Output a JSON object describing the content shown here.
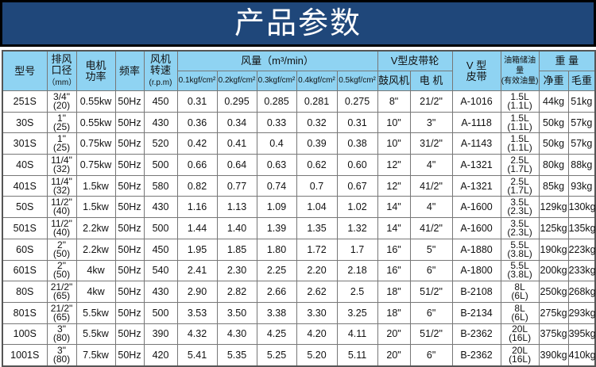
{
  "title": "产品参数",
  "headers": {
    "model": "型号",
    "outlet": [
      "排风",
      "口径",
      "（mm）"
    ],
    "power": [
      "电机",
      "功率"
    ],
    "freq": "频率",
    "speed": [
      "风机",
      "转速",
      "(r.p.m)"
    ],
    "airflow": "风量（m³/min）",
    "pressures": [
      "0.1kgf/cm²",
      "0.2kgf/cm²",
      "0.3kgf/cm²",
      "0.4kgf/cm²",
      "0.5kgf/cm²"
    ],
    "pulley": "V型皮带轮",
    "blower": "鼓风机",
    "motor": "电 机",
    "belt": [
      "V 型",
      "皮带"
    ],
    "oil": [
      "油箱储油量",
      "(有效油量)"
    ],
    "weight": "重 量",
    "net": "净重",
    "gross": "毛重"
  },
  "rows": [
    [
      "251S",
      "3/4\"",
      "(20)",
      "0.55kw",
      "50Hz",
      "450",
      "0.31",
      "0.295",
      "0.285",
      "0.281",
      "0.275",
      "8\"",
      "21/2\"",
      "A-1016",
      "1.5L",
      "(1.1L)",
      "44kg",
      "51kg"
    ],
    [
      "30S",
      "1\"",
      "(25)",
      "0.55kw",
      "50Hz",
      "430",
      "0.36",
      "0.34",
      "0.33",
      "0.32",
      "0.31",
      "10\"",
      "3\"",
      "A-1118",
      "1.5L",
      "(1.1L)",
      "50kg",
      "57kg"
    ],
    [
      "301S",
      "1\"",
      "(25)",
      "0.75kw",
      "50Hz",
      "520",
      "0.42",
      "0.41",
      "0.4",
      "0.39",
      "0.38",
      "10\"",
      "31/2\"",
      "A-1143",
      "1.5L",
      "(1.1L)",
      "50kg",
      "57kg"
    ],
    [
      "40S",
      "11/4\"",
      "(32)",
      "0.75kw",
      "50Hz",
      "500",
      "0.66",
      "0.64",
      "0.63",
      "0.62",
      "0.60",
      "12\"",
      "4\"",
      "A-1321",
      "2.5L",
      "(1.7L)",
      "80kg",
      "88kg"
    ],
    [
      "401S",
      "11/4\"",
      "(32)",
      "1.5kw",
      "50Hz",
      "580",
      "0.82",
      "0.77",
      "0.74",
      "0.7",
      "0.67",
      "12\"",
      "41/2\"",
      "A-1321",
      "2.5L",
      "(1.7L)",
      "85kg",
      "93kg"
    ],
    [
      "50S",
      "11/2\"",
      "(40)",
      "1.5kw",
      "50Hz",
      "430",
      "1.16",
      "1.13",
      "1.09",
      "1.04",
      "1.02",
      "14\"",
      "4\"",
      "A-1600",
      "3.5L",
      "(2.3L)",
      "129kg",
      "130kg"
    ],
    [
      "501S",
      "11/2\"",
      "(40)",
      "2.2kw",
      "50Hz",
      "500",
      "1.44",
      "1.40",
      "1.39",
      "1.35",
      "1.32",
      "14\"",
      "41/2\"",
      "A-1600",
      "3.5L",
      "(2.3L)",
      "125kg",
      "135kg"
    ],
    [
      "60S",
      "2\"",
      "(50)",
      "2.2kw",
      "50Hz",
      "450",
      "1.95",
      "1.85",
      "1.80",
      "1.72",
      "1.7",
      "16\"",
      "5\"",
      "A-1880",
      "5.5L",
      "(3.8L)",
      "190kg",
      "223kg"
    ],
    [
      "601S",
      "2\"",
      "(50)",
      "4kw",
      "50Hz",
      "540",
      "2.41",
      "2.30",
      "2.25",
      "2.20",
      "2.18",
      "16\"",
      "6\"",
      "A-1800",
      "5.5L",
      "(3.8L)",
      "200kg",
      "233kg"
    ],
    [
      "80S",
      "21/2\"",
      "(65)",
      "4kw",
      "50Hz",
      "430",
      "2.90",
      "2.82",
      "2.66",
      "2.62",
      "2.5",
      "18\"",
      "51/2\"",
      "B-2108",
      "8L",
      "(6L)",
      "250kg",
      "268kg"
    ],
    [
      "801S",
      "21/2\"",
      "(65)",
      "5.5kw",
      "50Hz",
      "500",
      "3.53",
      "3.50",
      "3.38",
      "3.30",
      "3.25",
      "18\"",
      "6\"",
      "B-2134",
      "8L",
      "(6L)",
      "275kg",
      "293kg"
    ],
    [
      "100S",
      "3\"",
      "(80)",
      "5.5kw",
      "50Hz",
      "390",
      "4.32",
      "4.30",
      "4.25",
      "4.20",
      "4.11",
      "20\"",
      "51/2\"",
      "B-2362",
      "20L",
      "(16L)",
      "375kg",
      "395kg"
    ],
    [
      "1001S",
      "3\"",
      "(80)",
      "7.5kw",
      "50Hz",
      "420",
      "5.41",
      "5.35",
      "5.25",
      "5.20",
      "5.11",
      "20\"",
      "6\"",
      "B-2362",
      "20L",
      "(16L)",
      "390kg",
      "410kg"
    ]
  ]
}
